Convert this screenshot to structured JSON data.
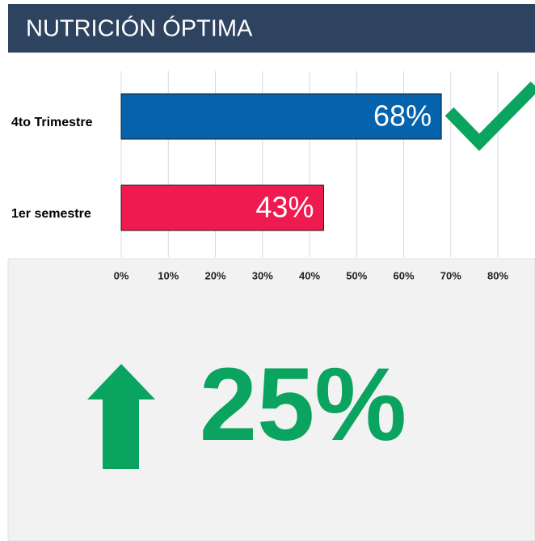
{
  "chart_data": {
    "type": "bar",
    "orientation": "horizontal",
    "title": "NUTRICIÓN ÓPTIMA",
    "categories": [
      "4to Trimestre",
      "1er semestre"
    ],
    "values": [
      68,
      43
    ],
    "value_labels": [
      "68%",
      "43%"
    ],
    "colors": [
      "#0563ad",
      "#ef1a4f"
    ],
    "xlim": [
      0,
      80
    ],
    "xticks": [
      {
        "value": 0,
        "label": "0%"
      },
      {
        "value": 10,
        "label": "10%"
      },
      {
        "value": 20,
        "label": "20%"
      },
      {
        "value": 30,
        "label": "30%"
      },
      {
        "value": 40,
        "label": "40%"
      },
      {
        "value": 50,
        "label": "50%"
      },
      {
        "value": 60,
        "label": "60%"
      },
      {
        "value": 70,
        "label": "70%"
      },
      {
        "value": 80,
        "label": "80%"
      }
    ],
    "grid": true,
    "annotation": "25%"
  }
}
